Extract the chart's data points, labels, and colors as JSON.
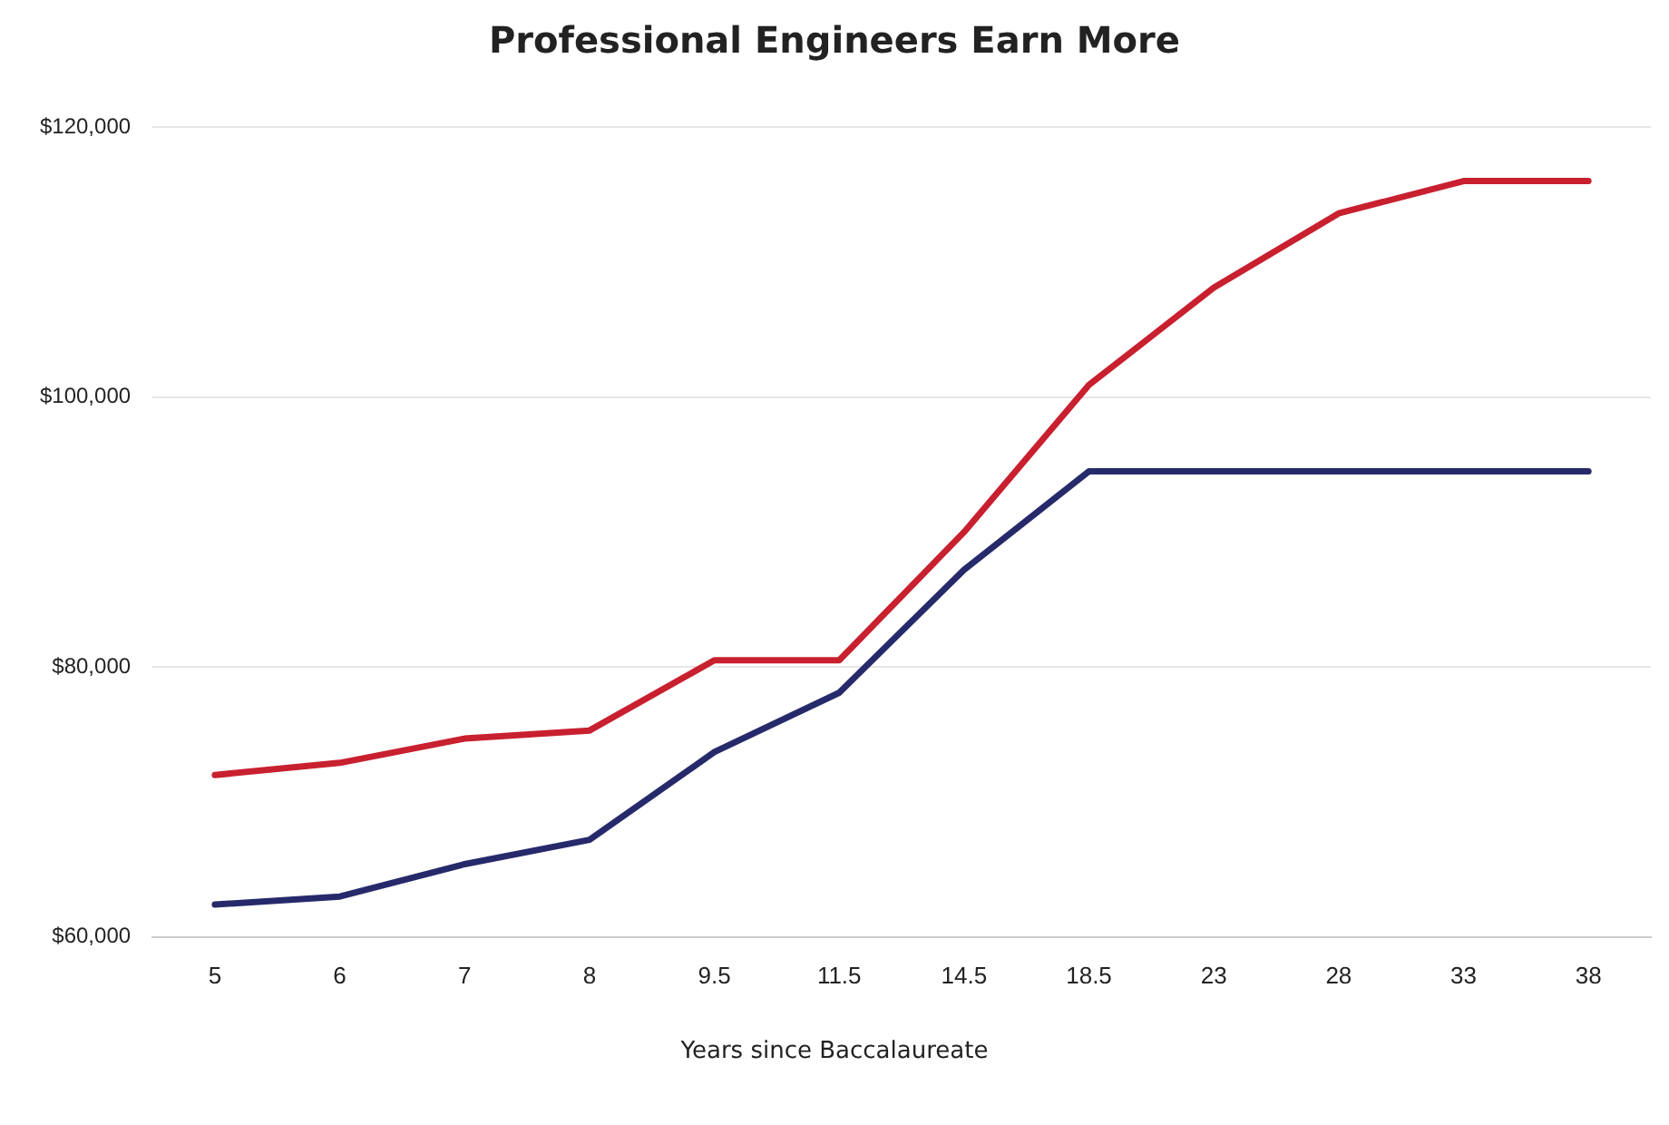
{
  "chart_data": {
    "type": "line",
    "title": "Professional Engineers Earn More",
    "xlabel": "Years since Baccalaureate",
    "categories": [
      "5",
      "6",
      "7",
      "8",
      "9.5",
      "11.5",
      "14.5",
      "18.5",
      "23",
      "28",
      "33",
      "38"
    ],
    "series": [
      {
        "color": "#c8202f",
        "values": [
          72000,
          72900,
          74700,
          75300,
          80500,
          80500,
          90000,
          100900,
          108100,
          113600,
          116000,
          116000
        ]
      },
      {
        "color": "#262a6b",
        "values": [
          62400,
          63000,
          65400,
          67200,
          73700,
          78100,
          87200,
          94500,
          94500,
          94500,
          94500,
          94500
        ]
      }
    ],
    "ylim": [
      60000,
      120000
    ],
    "yticks": [
      {
        "value": 60000,
        "label": "$60,000"
      },
      {
        "value": 80000,
        "label": "$80,000"
      },
      {
        "value": 100000,
        "label": "$100,000"
      },
      {
        "value": 120000,
        "label": "$120,000"
      }
    ],
    "grid": "y",
    "legend": false,
    "marker": "none",
    "line_style": "solid"
  }
}
